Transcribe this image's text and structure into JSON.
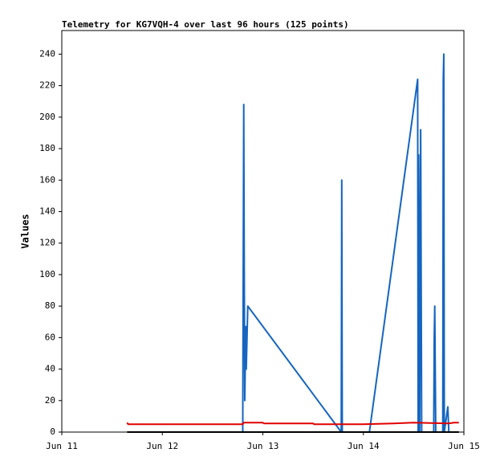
{
  "chart_data": {
    "type": "line",
    "title": "Telemetry for KG7VQH-4 over last 96 hours (125 points)",
    "y_label": "Values",
    "xlim": [
      11,
      15
    ],
    "xticks": [
      {
        "value": 11,
        "label": "Jun 11"
      },
      {
        "value": 12,
        "label": "Jun 12"
      },
      {
        "value": 13,
        "label": "Jun 13"
      },
      {
        "value": 14,
        "label": "Jun 14"
      },
      {
        "value": 15,
        "label": "Jun 15"
      }
    ],
    "ylim": [
      0,
      255
    ],
    "yticks": [
      0,
      20,
      40,
      60,
      80,
      100,
      120,
      140,
      160,
      180,
      200,
      220,
      240
    ],
    "series": [
      {
        "color": "#1565c0",
        "x": [
          12.8,
          12.81,
          12.815,
          12.82,
          12.83,
          12.835,
          12.85,
          13.78,
          13.785,
          13.79,
          14.06,
          14.54,
          14.545,
          14.55,
          14.56,
          14.57,
          14.58,
          14.7,
          14.705,
          14.71,
          14.715,
          14.72,
          14.79,
          14.795,
          14.8,
          14.805,
          14.84,
          14.85
        ],
        "values": [
          0,
          208,
          104,
          20,
          67,
          40,
          80,
          0,
          160,
          0,
          0,
          224,
          0,
          176,
          0,
          192,
          0,
          0,
          60,
          80,
          40,
          0,
          0,
          224,
          240,
          0,
          16,
          0
        ]
      },
      {
        "color": "#e00000",
        "x": [
          11.65,
          11.66,
          12.8,
          12.81,
          13.0,
          13.01,
          13.5,
          13.51,
          14.0,
          14.3,
          14.5,
          14.85,
          14.9,
          14.95
        ],
        "values": [
          6,
          5,
          5,
          6,
          6,
          5.5,
          5.5,
          5,
          5,
          5.5,
          6,
          5.5,
          6,
          6
        ]
      },
      {
        "color": "#000000",
        "x": [
          11.65,
          14.95
        ],
        "values": [
          0,
          0
        ]
      }
    ]
  }
}
